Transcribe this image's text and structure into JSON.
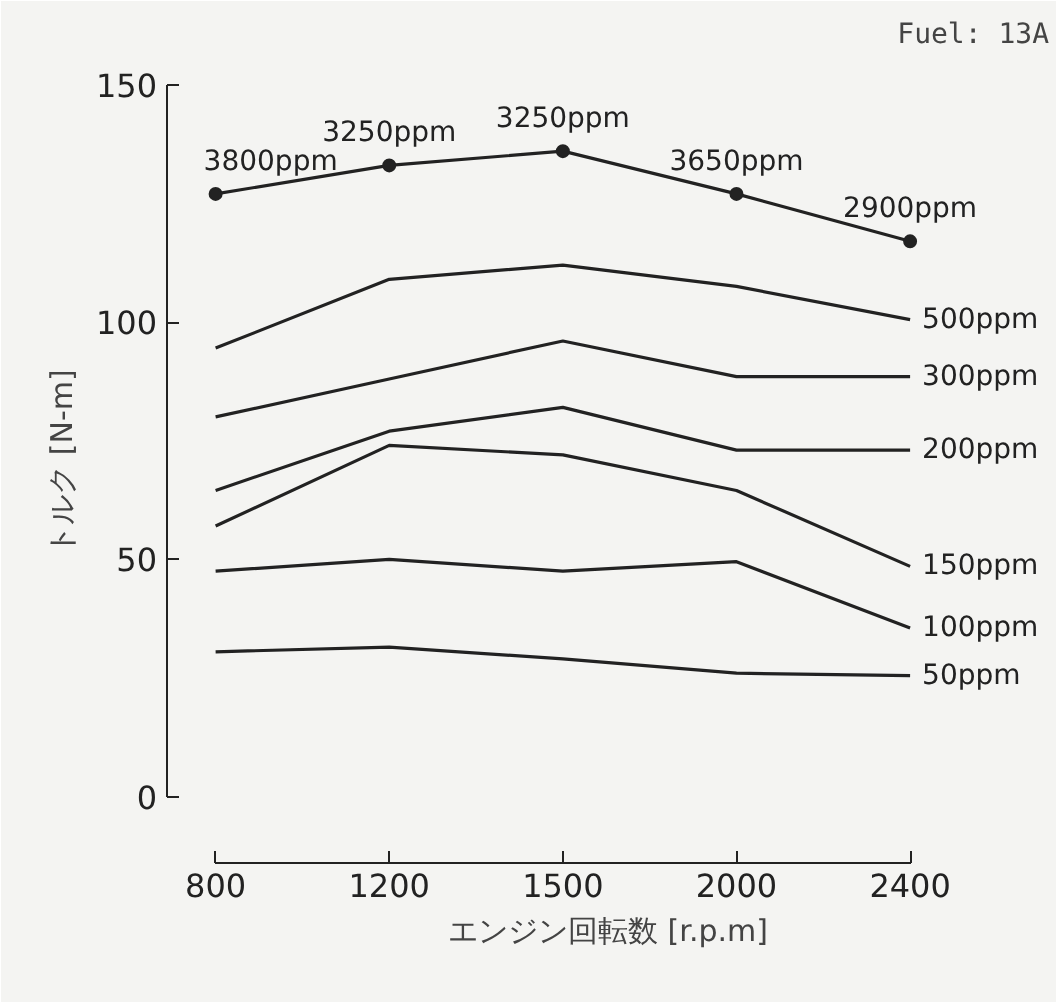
{
  "chart_data": {
    "type": "line",
    "title": "Fuel: 13A",
    "xlabel": "エンジン回転数 [r.p.m]",
    "ylabel": "トルク [N-m]",
    "categories": [
      "800",
      "1200",
      "1500",
      "2000",
      "2400"
    ],
    "ylim": [
      -14,
      155
    ],
    "yticks": [
      0,
      50,
      100,
      150
    ],
    "grid": false,
    "line_style": "solid",
    "marker": "none",
    "series": [
      {
        "color": "#222222",
        "marker": "circle",
        "values": [
          127,
          133,
          136,
          127,
          117
        ]
      },
      {
        "name": "500ppm",
        "color": "#222222",
        "values": [
          94.5,
          109,
          112,
          107.5,
          100.5
        ]
      },
      {
        "name": "300ppm",
        "color": "#222222",
        "values": [
          80,
          88,
          96,
          88.5,
          88.5
        ]
      },
      {
        "name": "200ppm",
        "color": "#222222",
        "values": [
          64.5,
          77,
          82,
          73,
          73
        ]
      },
      {
        "name": "150ppm",
        "color": "#222222",
        "values": [
          57,
          74,
          72,
          64.5,
          48.5
        ]
      },
      {
        "name": "100ppm",
        "color": "#222222",
        "values": [
          47.5,
          50,
          47.5,
          49.5,
          35.5
        ]
      },
      {
        "name": "50ppm",
        "color": "#222222",
        "values": [
          30.5,
          31.5,
          29,
          26,
          25.5
        ]
      }
    ],
    "annotations": [
      {
        "text": "3800ppm",
        "x": "800",
        "y": 127
      },
      {
        "text": "3250ppm",
        "x": "1200",
        "y": 133
      },
      {
        "text": "3250ppm",
        "x": "1500",
        "y": 136
      },
      {
        "text": "3650ppm",
        "x": "2000",
        "y": 127
      },
      {
        "text": "2900ppm",
        "x": "2400",
        "y": 117
      }
    ]
  }
}
